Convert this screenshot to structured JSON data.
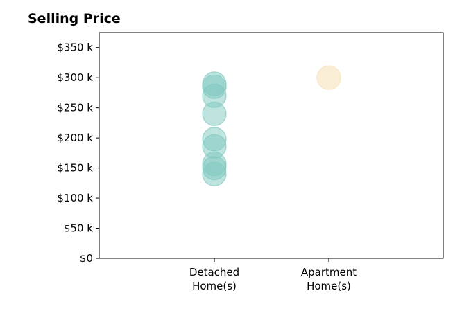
{
  "chart_data": {
    "type": "scatter",
    "title": "Selling Price",
    "xlabel": "",
    "ylabel": "",
    "categories": [
      {
        "lines": [
          "Detached",
          "Home(s)"
        ]
      },
      {
        "lines": [
          "Apartment",
          "Home(s)"
        ]
      }
    ],
    "ylim": [
      0,
      375000
    ],
    "yticks": [
      {
        "value": 0,
        "label": "$0"
      },
      {
        "value": 50000,
        "label": "$50 k"
      },
      {
        "value": 100000,
        "label": "$100 k"
      },
      {
        "value": 150000,
        "label": "$150 k"
      },
      {
        "value": 200000,
        "label": "$200 k"
      },
      {
        "value": 250000,
        "label": "$250 k"
      },
      {
        "value": 300000,
        "label": "$300 k"
      },
      {
        "value": 350000,
        "label": "$350 k"
      }
    ],
    "series": [
      {
        "category_index": 0,
        "color": "#7fc8bf",
        "values": [
          290000,
          285000,
          270000,
          240000,
          198000,
          186000,
          157000,
          150000,
          140000
        ]
      },
      {
        "category_index": 1,
        "color": "#f5deb0",
        "values": [
          300000
        ]
      }
    ],
    "grid": false,
    "legend": "none"
  }
}
